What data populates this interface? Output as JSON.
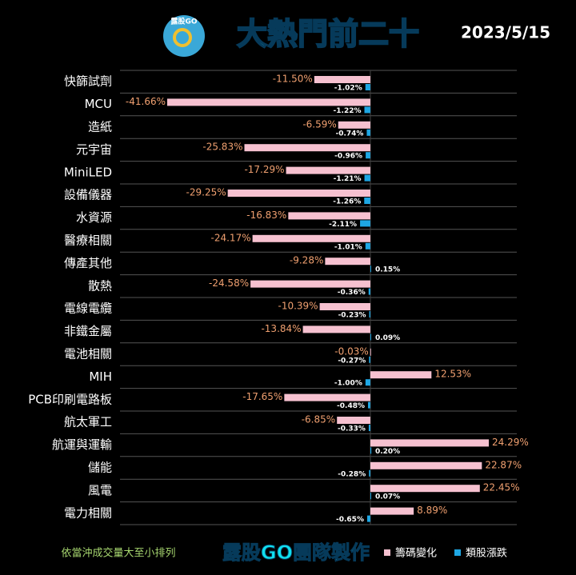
{
  "chart_data": {
    "type": "bar",
    "orientation": "horizontal",
    "title": "大熱門前二十",
    "date": "2023/5/15",
    "logo_text": "露股GO",
    "note": "依當沖成交量大至小排列",
    "credit": "露股GO團隊製作",
    "categories": [
      "快篩試劑",
      "MCU",
      "造紙",
      "元宇宙",
      "MiniLED",
      "設備儀器",
      "水資源",
      "醫療相關",
      "傳產其他",
      "散熱",
      "電線電纜",
      "非鐵金屬",
      "電池相關",
      "MIH",
      "PCB印刷電路板",
      "航太軍工",
      "航運與運輸",
      "儲能",
      "風電",
      "電力相關"
    ],
    "series": [
      {
        "name": "籌碼變化",
        "color": "#f6c1d0",
        "values": [
          -11.5,
          -41.66,
          -6.59,
          -25.83,
          -17.29,
          -29.25,
          -16.83,
          -24.17,
          -9.28,
          -24.58,
          -10.39,
          -13.84,
          -0.03,
          12.53,
          -17.65,
          -6.85,
          24.29,
          22.87,
          22.45,
          8.89
        ],
        "value_labels": [
          "-11.50%",
          "-41.66%",
          "-6.59%",
          "-25.83%",
          "-17.29%",
          "-29.25%",
          "-16.83%",
          "-24.17%",
          "-9.28%",
          "-24.58%",
          "-10.39%",
          "-13.84%",
          "-0.03%",
          "12.53%",
          "-17.65%",
          "-6.85%",
          "24.29%",
          "22.87%",
          "22.45%",
          "8.89%"
        ]
      },
      {
        "name": "類股漲跌",
        "color": "#1ea7e4",
        "values": [
          -1.02,
          -1.22,
          -0.74,
          -0.96,
          -1.21,
          -1.26,
          -2.11,
          -1.01,
          0.15,
          -0.36,
          -0.23,
          0.09,
          -0.27,
          -1.0,
          -0.48,
          -0.33,
          0.2,
          -0.28,
          0.07,
          -0.65
        ],
        "value_labels": [
          "-1.02%",
          "-1.22%",
          "-0.74%",
          "-0.96%",
          "-1.21%",
          "-1.26%",
          "-2.11%",
          "-1.01%",
          "0.15%",
          "-0.36%",
          "-0.23%",
          "0.09%",
          "-0.27%",
          "-1.00%",
          "-0.48%",
          "-0.33%",
          "0.20%",
          "-0.28%",
          "0.07%",
          "-0.65%"
        ]
      }
    ],
    "legend": "bottom-right"
  }
}
